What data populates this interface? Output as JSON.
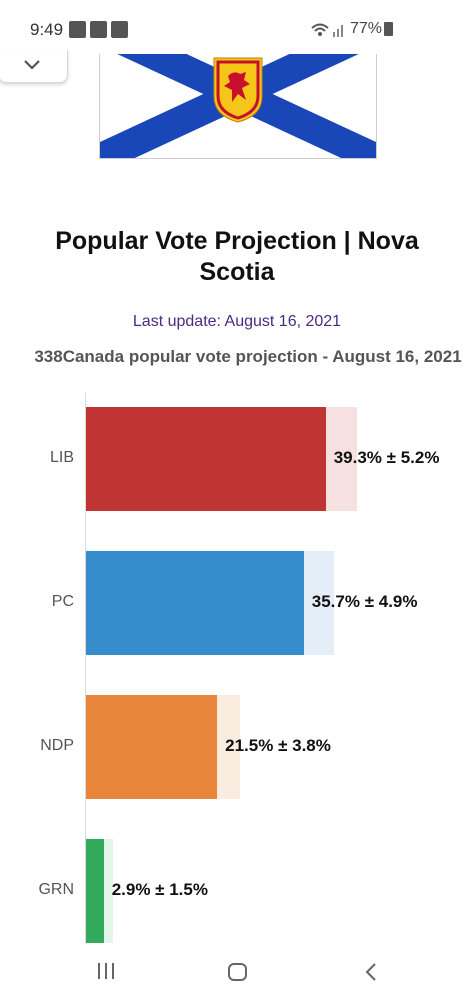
{
  "status_bar": {
    "time": "9:49",
    "battery": "77%"
  },
  "page": {
    "title": "Popular Vote Projection | Nova Scotia",
    "last_update": "Last update: August 16, 2021"
  },
  "colors": {
    "flag_blue": "#1a47b8",
    "update_text": "#4a2a82"
  },
  "icons": {
    "collapse": "chevron-down-icon",
    "nav_recent": "recent-apps-icon",
    "nav_home": "home-icon",
    "nav_back": "back-icon"
  },
  "chart_data": {
    "type": "bar",
    "orientation": "horizontal",
    "title": "338Canada popular vote projection - August 16, 2021",
    "categories": [
      "LIB",
      "PC",
      "NDP",
      "GRN"
    ],
    "values": [
      39.3,
      35.7,
      21.5,
      2.9
    ],
    "errors": [
      5.2,
      4.9,
      3.8,
      1.5
    ],
    "labels": [
      "39.3% ± 5.2%",
      "35.7% ± 4.9%",
      "21.5% ± 3.8%",
      "2.9% ± 1.5%"
    ],
    "colors": [
      "#c03434",
      "#378ccc",
      "#e8873b",
      "#33a95c"
    ],
    "error_colors": [
      "#f6e0e0",
      "#e3eef8",
      "#fbece0",
      "#e3f6e9"
    ],
    "xlim": [
      0,
      50
    ],
    "grid": false
  }
}
